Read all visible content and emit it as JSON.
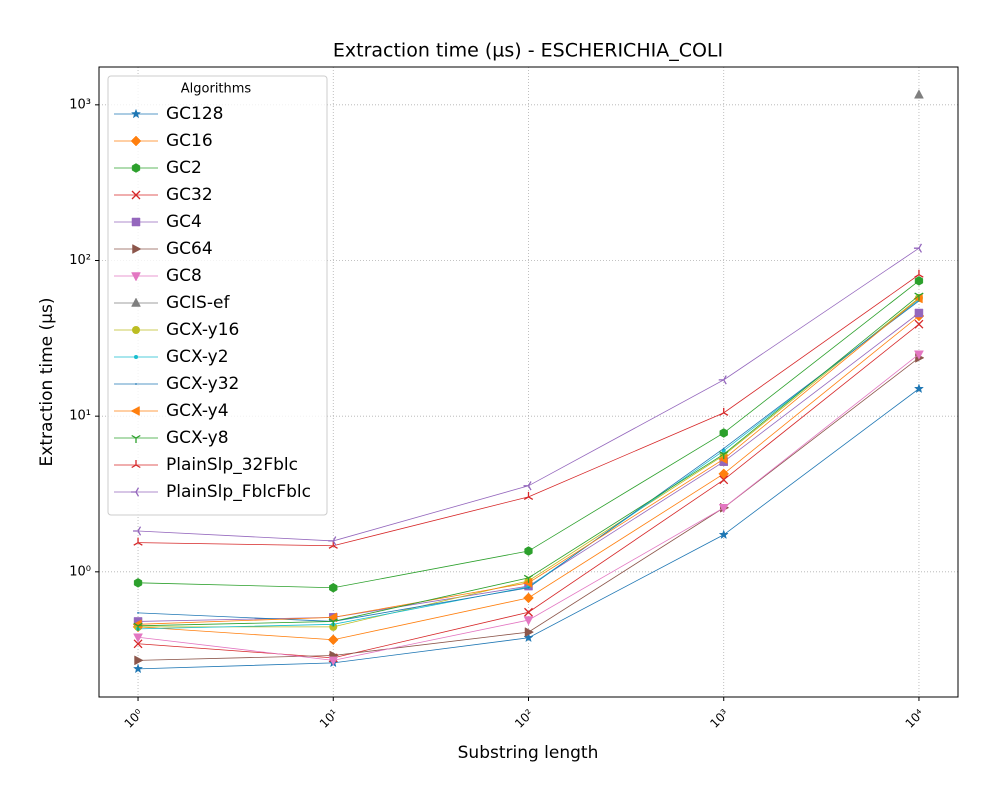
{
  "chart_data": {
    "type": "line",
    "title": "Extraction time (µs) - ESCHERICHIA_COLI",
    "x_label": "Substring length",
    "y_label": "Extraction time (µs)",
    "xscale": "log",
    "yscale": "log",
    "grid": true,
    "legend_title": "Algorithms",
    "legend_loc": "upper left",
    "x": [
      1,
      10,
      100,
      1000,
      10000
    ],
    "xlim": [
      0.631,
      15849
    ],
    "ylim": [
      0.157,
      1750
    ],
    "xticks": [
      {
        "value": 1,
        "label": "10⁰"
      },
      {
        "value": 10,
        "label": "10¹"
      },
      {
        "value": 100,
        "label": "10²"
      },
      {
        "value": 1000,
        "label": "10³"
      },
      {
        "value": 10000,
        "label": "10⁴"
      }
    ],
    "yticks": [
      {
        "value": 1,
        "label": "10⁰"
      },
      {
        "value": 10,
        "label": "10¹"
      },
      {
        "value": 100,
        "label": "10²"
      },
      {
        "value": 1000,
        "label": "10³"
      }
    ],
    "series": [
      {
        "name": "GC128",
        "color": "#1f77b4",
        "marker": "star",
        "values": [
          0.238,
          0.26,
          0.377,
          1.73,
          15.0
        ]
      },
      {
        "name": "GC16",
        "color": "#ff7f0e",
        "marker": "diamond",
        "values": [
          0.443,
          0.366,
          0.68,
          4.26,
          44
        ]
      },
      {
        "name": "GC2",
        "color": "#2ca02c",
        "marker": "hexagon",
        "values": [
          0.85,
          0.79,
          1.36,
          7.8,
          74
        ]
      },
      {
        "name": "GC32",
        "color": "#d62728",
        "marker": "x",
        "values": [
          0.345,
          0.28,
          0.55,
          3.9,
          39
        ]
      },
      {
        "name": "GC4",
        "color": "#9467bd",
        "marker": "square",
        "values": [
          0.48,
          0.51,
          0.81,
          5.1,
          46
        ]
      },
      {
        "name": "GC64",
        "color": "#8c564b",
        "marker": "triangle_right",
        "values": [
          0.27,
          0.29,
          0.41,
          2.58,
          23.7
        ]
      },
      {
        "name": "GC8",
        "color": "#e377c2",
        "marker": "triangle_down",
        "values": [
          0.38,
          0.27,
          0.49,
          2.58,
          25
        ]
      },
      {
        "name": "GCIS-ef",
        "color": "#7f7f7f",
        "marker": "triangle_up",
        "values": [
          null,
          null,
          null,
          null,
          1160
        ]
      },
      {
        "name": "GCX-y16",
        "color": "#bcbd22",
        "marker": "circle",
        "values": [
          0.443,
          0.443,
          0.875,
          5.6,
          57.5
        ]
      },
      {
        "name": "GCX-y2",
        "color": "#17becf",
        "marker": "point",
        "values": [
          0.43,
          0.46,
          0.8,
          6.0,
          56
        ]
      },
      {
        "name": "GCX-y32",
        "color": "#1f77b4",
        "marker": "pixel",
        "values": [
          0.545,
          0.48,
          0.79,
          6.2,
          55
        ]
      },
      {
        "name": "GCX-y4",
        "color": "#ff7f0e",
        "marker": "triangle_left",
        "values": [
          0.46,
          0.51,
          0.85,
          5.3,
          57
        ]
      },
      {
        "name": "GCX-y8",
        "color": "#2ca02c",
        "marker": "tri_down",
        "values": [
          0.45,
          0.48,
          0.915,
          5.7,
          59.5
        ]
      },
      {
        "name": "PlainSlp_32Fblc",
        "color": "#d62728",
        "marker": "tri_up",
        "values": [
          1.54,
          1.47,
          3.03,
          10.5,
          81
        ]
      },
      {
        "name": "PlainSlp_FblcFblc",
        "color": "#9467bd",
        "marker": "tri_left",
        "values": [
          1.83,
          1.58,
          3.57,
          17.1,
          120
        ]
      }
    ]
  }
}
